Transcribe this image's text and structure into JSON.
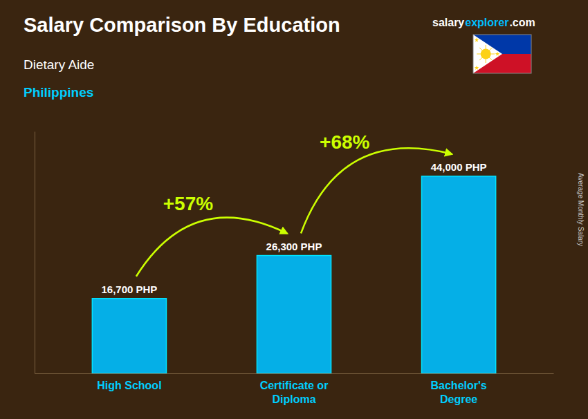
{
  "chart_data": {
    "type": "bar",
    "title": "Salary Comparison By Education",
    "subtitle": [
      "Dietary Aide",
      "Philippines"
    ],
    "y_label": "Average Monthly Salary",
    "watermark": [
      "salary",
      "explorer",
      ".com"
    ],
    "categories": [
      "High School",
      "Certificate or\nDiploma",
      "Bachelor's\nDegree"
    ],
    "values": [
      16700,
      26300,
      44000
    ],
    "value_labels": [
      "16,700 PHP",
      "26,300 PHP",
      "44,000 PHP"
    ],
    "data_labels": true,
    "annotations": [
      "+57%",
      "+68%"
    ],
    "color": "#00BFFF",
    "ylim": [
      0,
      54000
    ],
    "grid": false,
    "tick_labels": "x"
  }
}
